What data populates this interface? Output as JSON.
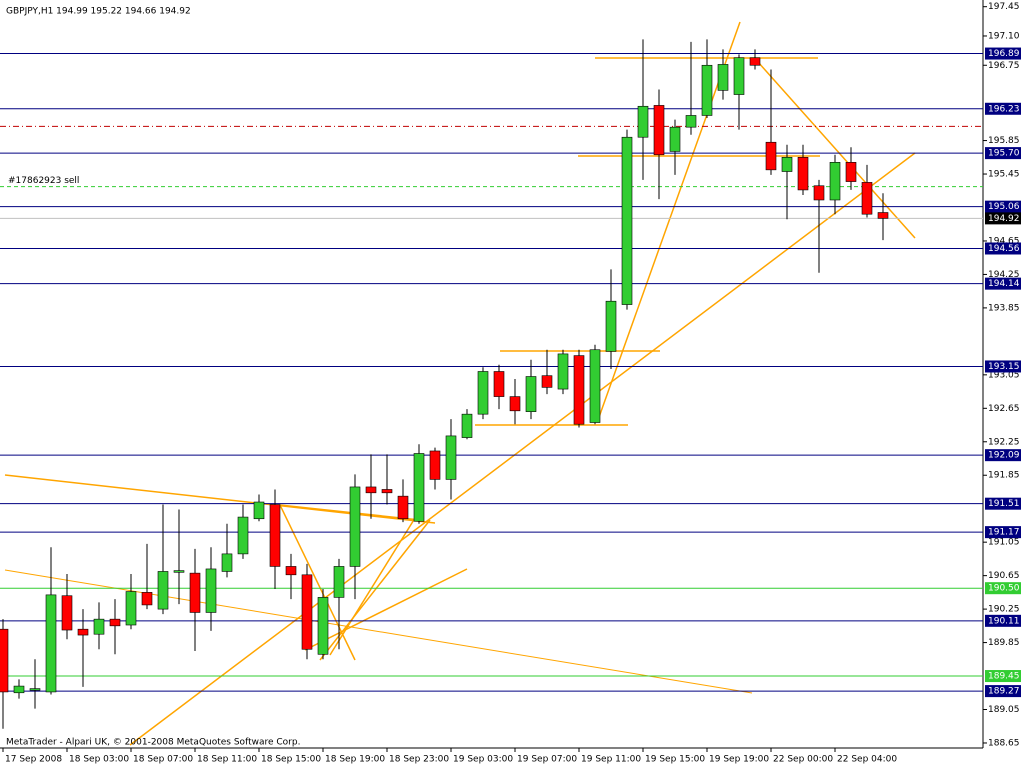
{
  "chart_data": {
    "type": "candlestick",
    "title": "GBPJPY,H1  194.99 195.22 194.66 194.92",
    "footer": "MetaTrader - Alpari UK, © 2001-2008 MetaQuotes Software Corp.",
    "up_color": "#32cd32",
    "down_color": "#ff0000",
    "categories": [
      "17 Sep 2008",
      null,
      null,
      null,
      "18 Sep 03:00",
      null,
      null,
      null,
      "18 Sep 07:00",
      null,
      null,
      null,
      "18 Sep 11:00",
      null,
      null,
      null,
      "18 Sep 15:00",
      null,
      null,
      null,
      "18 Sep 19:00",
      null,
      null,
      null,
      "18 Sep 23:00",
      null,
      null,
      null,
      "19 Sep 03:00",
      null,
      null,
      null,
      "19 Sep 07:00",
      null,
      null,
      null,
      "19 Sep 11:00",
      null,
      null,
      null,
      "19 Sep 15:00",
      null,
      null,
      null,
      "19 Sep 19:00",
      null,
      null,
      null,
      "22 Sep 00:00",
      null,
      null,
      null,
      "22 Sep 04:00",
      null,
      null,
      null
    ],
    "open": [
      190.01,
      189.25,
      189.28,
      189.26,
      190.41,
      190.01,
      189.95,
      190.13,
      190.06,
      190.45,
      190.25,
      190.69,
      190.68,
      190.21,
      190.7,
      190.91,
      191.33,
      191.5,
      190.76,
      190.66,
      189.71,
      190.39,
      190.76,
      191.71,
      191.68,
      191.6,
      191.3,
      192.14,
      191.8,
      192.3,
      192.58,
      193.09,
      192.79,
      192.61,
      193.04,
      192.88,
      193.28,
      192.48,
      193.33,
      193.89,
      195.89,
      196.27,
      195.72,
      196.01,
      196.15,
      196.45,
      196.4,
      196.84,
      195.83,
      195.48,
      195.65,
      195.31,
      195.14,
      195.59,
      195.35,
      194.99
    ],
    "high": [
      190.13,
      189.41,
      189.65,
      190.99,
      190.67,
      190.25,
      190.33,
      190.37,
      190.67,
      191.03,
      191.5,
      191.44,
      190.97,
      190.99,
      191.27,
      191.5,
      191.62,
      191.68,
      190.91,
      190.79,
      190.49,
      190.85,
      191.86,
      192.1,
      192.1,
      191.8,
      192.22,
      192.18,
      192.52,
      192.64,
      193.14,
      193.17,
      193.0,
      193.23,
      193.35,
      193.35,
      193.35,
      193.41,
      194.31,
      195.98,
      197.06,
      196.46,
      196.1,
      197.03,
      197.06,
      196.94,
      196.88,
      196.94,
      196.7,
      195.8,
      195.8,
      195.38,
      195.68,
      195.77,
      195.56,
      195.22
    ],
    "low": [
      188.82,
      189.18,
      189.06,
      189.23,
      189.89,
      189.32,
      189.77,
      189.71,
      190.01,
      190.25,
      190.19,
      190.31,
      189.75,
      189.99,
      190.63,
      190.85,
      191.3,
      190.49,
      190.37,
      189.65,
      189.65,
      189.77,
      190.37,
      191.33,
      191.5,
      191.29,
      191.27,
      191.68,
      191.56,
      192.28,
      192.52,
      192.64,
      192.46,
      192.52,
      192.82,
      192.82,
      192.42,
      192.46,
      193.12,
      193.83,
      195.38,
      195.15,
      195.44,
      195.92,
      196.12,
      196.34,
      195.98,
      196.7,
      195.44,
      194.91,
      195.2,
      194.27,
      194.97,
      195.26,
      194.93,
      194.66
    ],
    "close": [
      189.26,
      189.33,
      189.3,
      190.42,
      190.0,
      189.94,
      190.13,
      190.05,
      190.46,
      190.3,
      190.7,
      190.71,
      190.21,
      190.73,
      190.91,
      191.35,
      191.53,
      190.76,
      190.66,
      189.77,
      190.39,
      190.76,
      191.71,
      191.64,
      191.64,
      191.33,
      192.11,
      191.8,
      192.32,
      192.58,
      193.09,
      192.79,
      192.62,
      193.03,
      192.9,
      193.3,
      192.46,
      193.35,
      193.93,
      195.89,
      196.26,
      195.68,
      196.01,
      196.15,
      196.75,
      196.76,
      196.84,
      196.75,
      195.5,
      195.65,
      195.26,
      195.14,
      195.59,
      195.36,
      194.97,
      194.92
    ],
    "ylim": [
      188.59,
      197.53
    ],
    "yticks": [
      197.45,
      {
        "value": 197.1,
        "label": "197.10"
      },
      196.75,
      195.85,
      195.45,
      194.65,
      194.25,
      193.85,
      193.05,
      192.65,
      192.25,
      191.85,
      191.05,
      190.65,
      190.25,
      189.85,
      189.05,
      188.65
    ],
    "levels": [
      {
        "value": 196.89,
        "color": "#000080"
      },
      {
        "value": 196.23,
        "color": "#000080"
      },
      {
        "value": {
          "value": 195.7,
          "label": "195.70"
        },
        "color": "#000080"
      },
      {
        "value": 195.06,
        "color": "#000080"
      },
      {
        "value": 194.56,
        "color": "#000080"
      },
      {
        "value": 194.14,
        "color": "#000080"
      },
      {
        "value": 193.15,
        "color": "#000080"
      },
      {
        "value": 192.09,
        "color": "#000080"
      },
      {
        "value": 191.51,
        "color": "#000080"
      },
      {
        "value": 191.17,
        "color": "#000080"
      },
      {
        "value": {
          "value": 190.5,
          "label": "190.50"
        },
        "color": "#32cd32"
      },
      {
        "value": 190.11,
        "color": "#000080"
      },
      {
        "value": 189.45,
        "color": "#32cd32"
      },
      {
        "value": 189.27,
        "color": "#000080"
      }
    ],
    "bid": 194.92,
    "order_lines": [
      {
        "label": "#17862923 sell",
        "value": 195.3,
        "color": "#32cd32"
      },
      {
        "value": 196.02,
        "color": "#c00000"
      }
    ]
  }
}
